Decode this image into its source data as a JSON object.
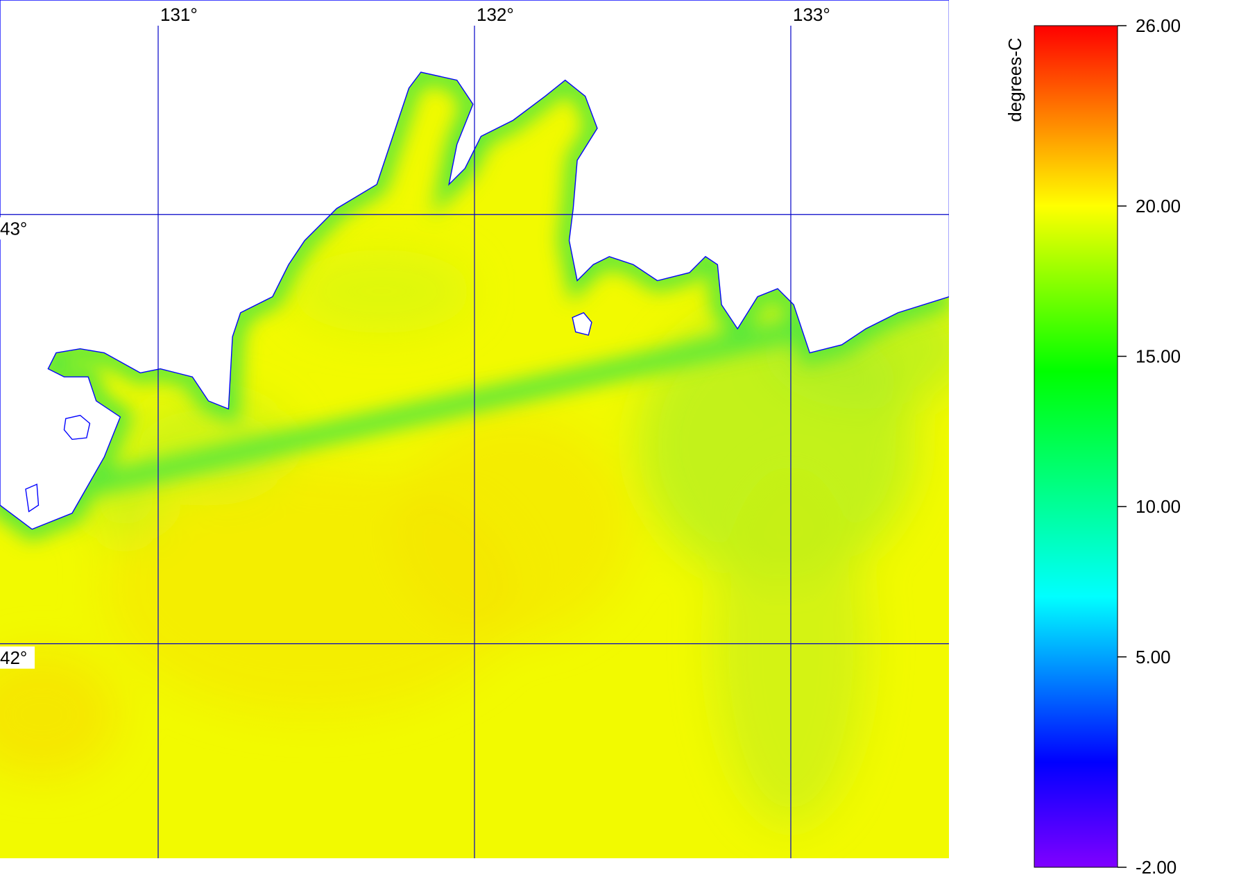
{
  "map": {
    "lon_range": [
      130.5,
      133.5
    ],
    "lat_range": [
      41.5,
      43.5
    ],
    "lon_ticks": [
      {
        "value": 131,
        "label": "131°"
      },
      {
        "value": 132,
        "label": "132°"
      },
      {
        "value": 133,
        "label": "133°"
      }
    ],
    "lat_ticks": [
      {
        "value": 43,
        "label": "43°"
      },
      {
        "value": 42,
        "label": "42°"
      }
    ],
    "grid_color": "#0000c8",
    "coast_color": "#0000ff"
  },
  "colorbar": {
    "label": "degrees-C",
    "range": [
      -2,
      26
    ],
    "ticks": [
      {
        "value": 26,
        "label": "26.00"
      },
      {
        "value": 20,
        "label": "20.00"
      },
      {
        "value": 15,
        "label": "15.00"
      },
      {
        "value": 10,
        "label": "10.00"
      },
      {
        "value": 5,
        "label": "5.00"
      },
      {
        "value": -2,
        "label": "-2.00"
      }
    ],
    "stops": [
      {
        "value": -2,
        "color": "#8000ff"
      },
      {
        "value": 1.5,
        "color": "#0000ff"
      },
      {
        "value": 7,
        "color": "#00ffff"
      },
      {
        "value": 14.5,
        "color": "#00ff00"
      },
      {
        "value": 20,
        "color": "#ffff00"
      },
      {
        "value": 23,
        "color": "#ff8000"
      },
      {
        "value": 26,
        "color": "#ff0000"
      }
    ]
  }
}
